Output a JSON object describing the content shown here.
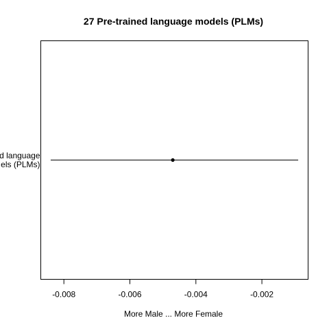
{
  "chart_data": {
    "type": "forest",
    "title": "27 Pre-trained language models (PLMs)",
    "xlabel": "More Male ... More Female",
    "ylabel": "",
    "categories": [
      [
        "d language",
        "els (PLMs)"
      ]
    ],
    "points": [
      {
        "estimate": -0.0047,
        "lower": -0.0084,
        "upper": -0.0009
      }
    ],
    "xticks": [
      -0.008,
      -0.006,
      -0.004,
      -0.002
    ],
    "xtick_labels": [
      "-0.008",
      "-0.006",
      "-0.004",
      "-0.002"
    ],
    "xlim": [
      -0.0087,
      -0.0006
    ],
    "grid": false,
    "colors": {
      "line": "#000000",
      "point": "#000000",
      "frame": "#000000"
    }
  }
}
